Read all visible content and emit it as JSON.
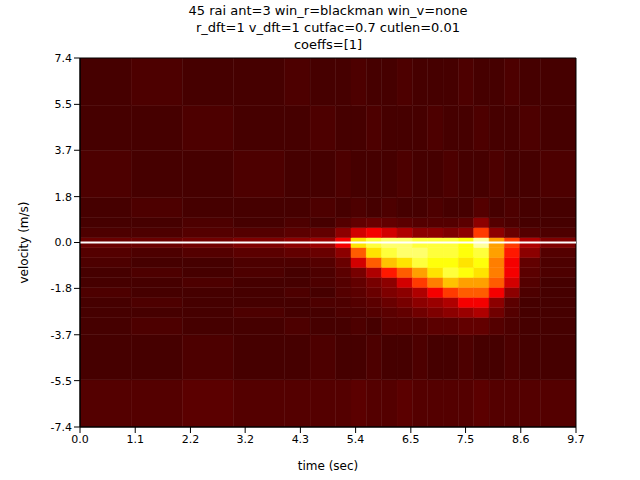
{
  "chart_data": {
    "type": "heatmap",
    "title": "45 rai ant=3 win_r=blackman win_v=none\nr_dft=1 v_dft=1 cutfac=0.7 cutlen=0.01\ncoeffs=[1]",
    "x_label": "time (sec)",
    "y_label": "velocity (m/s)",
    "xlim": [
      0,
      9.7
    ],
    "ylim": [
      -7.4,
      7.4
    ],
    "xticks": [
      {
        "value": 0,
        "label": "0.0"
      },
      {
        "value": 1.08,
        "label": "1.1"
      },
      {
        "value": 2.16,
        "label": "2.2"
      },
      {
        "value": 3.23,
        "label": "3.2"
      },
      {
        "value": 4.31,
        "label": "4.3"
      },
      {
        "value": 5.39,
        "label": "5.4"
      },
      {
        "value": 6.47,
        "label": "6.5"
      },
      {
        "value": 7.54,
        "label": "7.5"
      },
      {
        "value": 8.62,
        "label": "8.6"
      },
      {
        "value": 9.7,
        "label": "9.7"
      }
    ],
    "yticks": [
      {
        "value": -7.4,
        "label": "-7.4"
      },
      {
        "value": -5.54,
        "label": "-5.5"
      },
      {
        "value": -3.7,
        "label": "-3.7"
      },
      {
        "value": -1.84,
        "label": "-1.8"
      },
      {
        "value": 0,
        "label": "0.0"
      },
      {
        "value": 1.84,
        "label": "1.8"
      },
      {
        "value": 3.7,
        "label": "3.7"
      },
      {
        "value": 5.54,
        "label": "5.5"
      },
      {
        "value": 7.4,
        "label": "7.4"
      }
    ],
    "reference_line": 0,
    "cells": {
      "x_edges": [
        0,
        1.0,
        2.0,
        3.0,
        4.0,
        4.5,
        5.0,
        5.3,
        5.6,
        5.9,
        6.2,
        6.5,
        6.8,
        7.1,
        7.4,
        7.7,
        8.0,
        8.3,
        8.6,
        9.0,
        9.7
      ],
      "y_edges": [
        -7.4,
        -5.5,
        -3.7,
        -3.0,
        -2.6,
        -2.2,
        -1.8,
        -1.4,
        -1.0,
        -0.6,
        -0.2,
        0.2,
        0.6,
        1.0,
        1.8,
        3.7,
        5.5,
        7.4
      ],
      "values": [
        [
          0.12,
          0.12,
          0.13,
          0.12,
          0.12,
          0.12,
          0.12,
          0.13,
          0.12,
          0.12,
          0.13,
          0.12,
          0.12,
          0.12,
          0.12,
          0.13,
          0.12,
          0.12,
          0.12,
          0.12
        ],
        [
          0.1,
          0.1,
          0.11,
          0.1,
          0.1,
          0.11,
          0.1,
          0.1,
          0.11,
          0.1,
          0.1,
          0.11,
          0.1,
          0.1,
          0.11,
          0.1,
          0.1,
          0.11,
          0.1,
          0.1
        ],
        [
          0.1,
          0.11,
          0.1,
          0.1,
          0.11,
          0.1,
          0.1,
          0.11,
          0.1,
          0.12,
          0.12,
          0.12,
          0.13,
          0.13,
          0.14,
          0.14,
          0.12,
          0.11,
          0.1,
          0.1
        ],
        [
          0.1,
          0.1,
          0.1,
          0.11,
          0.1,
          0.1,
          0.11,
          0.11,
          0.12,
          0.13,
          0.14,
          0.16,
          0.18,
          0.2,
          0.22,
          0.25,
          0.16,
          0.12,
          0.1,
          0.1
        ],
        [
          0.1,
          0.11,
          0.1,
          0.1,
          0.1,
          0.11,
          0.11,
          0.12,
          0.13,
          0.15,
          0.17,
          0.2,
          0.22,
          0.25,
          0.35,
          0.35,
          0.2,
          0.13,
          0.1,
          0.1
        ],
        [
          0.11,
          0.1,
          0.1,
          0.1,
          0.11,
          0.1,
          0.12,
          0.13,
          0.15,
          0.18,
          0.2,
          0.25,
          0.35,
          0.45,
          0.5,
          0.5,
          0.35,
          0.2,
          0.11,
          0.1
        ],
        [
          0.1,
          0.1,
          0.11,
          0.1,
          0.1,
          0.11,
          0.12,
          0.14,
          0.17,
          0.2,
          0.3,
          0.45,
          0.55,
          0.65,
          0.6,
          0.6,
          0.5,
          0.3,
          0.12,
          0.1
        ],
        [
          0.1,
          0.11,
          0.1,
          0.11,
          0.1,
          0.11,
          0.13,
          0.17,
          0.25,
          0.4,
          0.5,
          0.6,
          0.7,
          0.8,
          0.75,
          0.7,
          0.55,
          0.35,
          0.13,
          0.11
        ],
        [
          0.11,
          0.1,
          0.1,
          0.11,
          0.11,
          0.12,
          0.15,
          0.3,
          0.5,
          0.65,
          0.7,
          0.8,
          0.75,
          0.75,
          0.7,
          0.75,
          0.55,
          0.35,
          0.14,
          0.11
        ],
        [
          0.12,
          0.11,
          0.12,
          0.13,
          0.14,
          0.15,
          0.2,
          0.5,
          0.7,
          0.8,
          0.85,
          0.85,
          0.8,
          0.8,
          0.75,
          0.8,
          0.6,
          0.4,
          0.2,
          0.12
        ],
        [
          0.15,
          0.15,
          0.16,
          0.18,
          0.2,
          0.22,
          0.35,
          0.7,
          0.8,
          0.85,
          0.85,
          0.8,
          0.8,
          0.8,
          0.75,
          0.9,
          0.6,
          0.45,
          0.25,
          0.18
        ],
        [
          0.11,
          0.11,
          0.12,
          0.12,
          0.13,
          0.14,
          0.2,
          0.3,
          0.35,
          0.3,
          0.25,
          0.2,
          0.2,
          0.18,
          0.2,
          0.45,
          0.2,
          0.15,
          0.12,
          0.11
        ],
        [
          0.1,
          0.1,
          0.11,
          0.1,
          0.11,
          0.1,
          0.12,
          0.14,
          0.15,
          0.14,
          0.13,
          0.12,
          0.12,
          0.12,
          0.13,
          0.2,
          0.12,
          0.11,
          0.1,
          0.1
        ],
        [
          0.1,
          0.11,
          0.1,
          0.1,
          0.1,
          0.11,
          0.1,
          0.11,
          0.1,
          0.11,
          0.1,
          0.1,
          0.11,
          0.1,
          0.1,
          0.12,
          0.1,
          0.11,
          0.1,
          0.1
        ],
        [
          0.11,
          0.1,
          0.1,
          0.11,
          0.1,
          0.1,
          0.11,
          0.1,
          0.1,
          0.1,
          0.11,
          0.1,
          0.1,
          0.11,
          0.1,
          0.1,
          0.11,
          0.1,
          0.1,
          0.11
        ],
        [
          0.1,
          0.1,
          0.11,
          0.1,
          0.1,
          0.11,
          0.1,
          0.1,
          0.11,
          0.1,
          0.1,
          0.1,
          0.11,
          0.1,
          0.1,
          0.11,
          0.1,
          0.1,
          0.11,
          0.1
        ],
        [
          0.1,
          0.11,
          0.1,
          0.1,
          0.11,
          0.1,
          0.1,
          0.11,
          0.1,
          0.1,
          0.11,
          0.1,
          0.1,
          0.1,
          0.11,
          0.1,
          0.1,
          0.11,
          0.1,
          0.1
        ]
      ]
    }
  }
}
